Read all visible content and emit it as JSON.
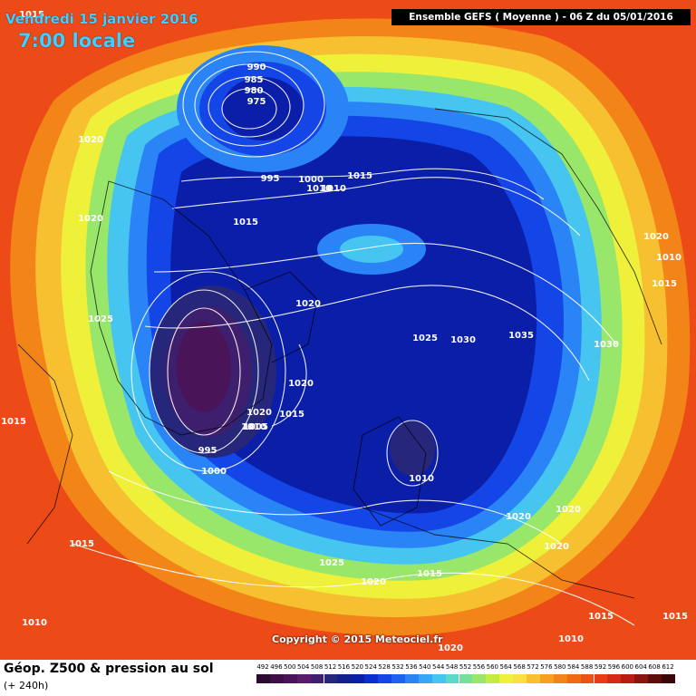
{
  "header": {
    "date": "Vendredi 15 janvier 2016",
    "time": "7:00 locale",
    "run": "Ensemble GEFS  ( Moyenne )  -  06 Z du 05/01/2016"
  },
  "copyright": "Copyright © 2015 Meteociel.fr",
  "footer": {
    "title": "Géop. Z500 & pression au sol",
    "subtitle": "(+ 240h)"
  },
  "legend": {
    "values": [
      "492",
      "496",
      "500",
      "504",
      "508",
      "512",
      "516",
      "520",
      "524",
      "528",
      "532",
      "536",
      "540",
      "544",
      "548",
      "552",
      "556",
      "560",
      "564",
      "568",
      "572",
      "576",
      "580",
      "584",
      "588",
      "592",
      "596",
      "600",
      "604",
      "608",
      "612"
    ],
    "colors": [
      "#2b0a2e",
      "#3d0f45",
      "#4a1458",
      "#5a1c6a",
      "#3e1f6e",
      "#26267a",
      "#141f8c",
      "#0a1ea8",
      "#0c2ed0",
      "#1445e6",
      "#1f62f0",
      "#2a84f5",
      "#36a6f7",
      "#46c5f0",
      "#5ad8c8",
      "#74e09a",
      "#98e66a",
      "#c4ec40",
      "#eef03a",
      "#f7e040",
      "#f6c030",
      "#f5a020",
      "#f38418",
      "#f06a14",
      "#ec5214",
      "#e83c16",
      "#d62a16",
      "#b81c14",
      "#8c1410",
      "#5e0c0a",
      "#3a0606"
    ]
  },
  "pressure_labels": [
    "990",
    "985",
    "980",
    "975",
    "995",
    "1000",
    "1010",
    "1010",
    "1015",
    "1020",
    "1020",
    "1015",
    "1020",
    "1025",
    "1020",
    "1025",
    "1030",
    "1035",
    "1020",
    "1010",
    "1015",
    "1030",
    "1015",
    "1020",
    "1010",
    "1015",
    "1005",
    "995",
    "1000",
    "1010",
    "1015",
    "1020",
    "1020",
    "1020",
    "1025",
    "1020",
    "1015",
    "1015",
    "1010",
    "1015",
    "1015",
    "1020",
    "1010"
  ]
}
